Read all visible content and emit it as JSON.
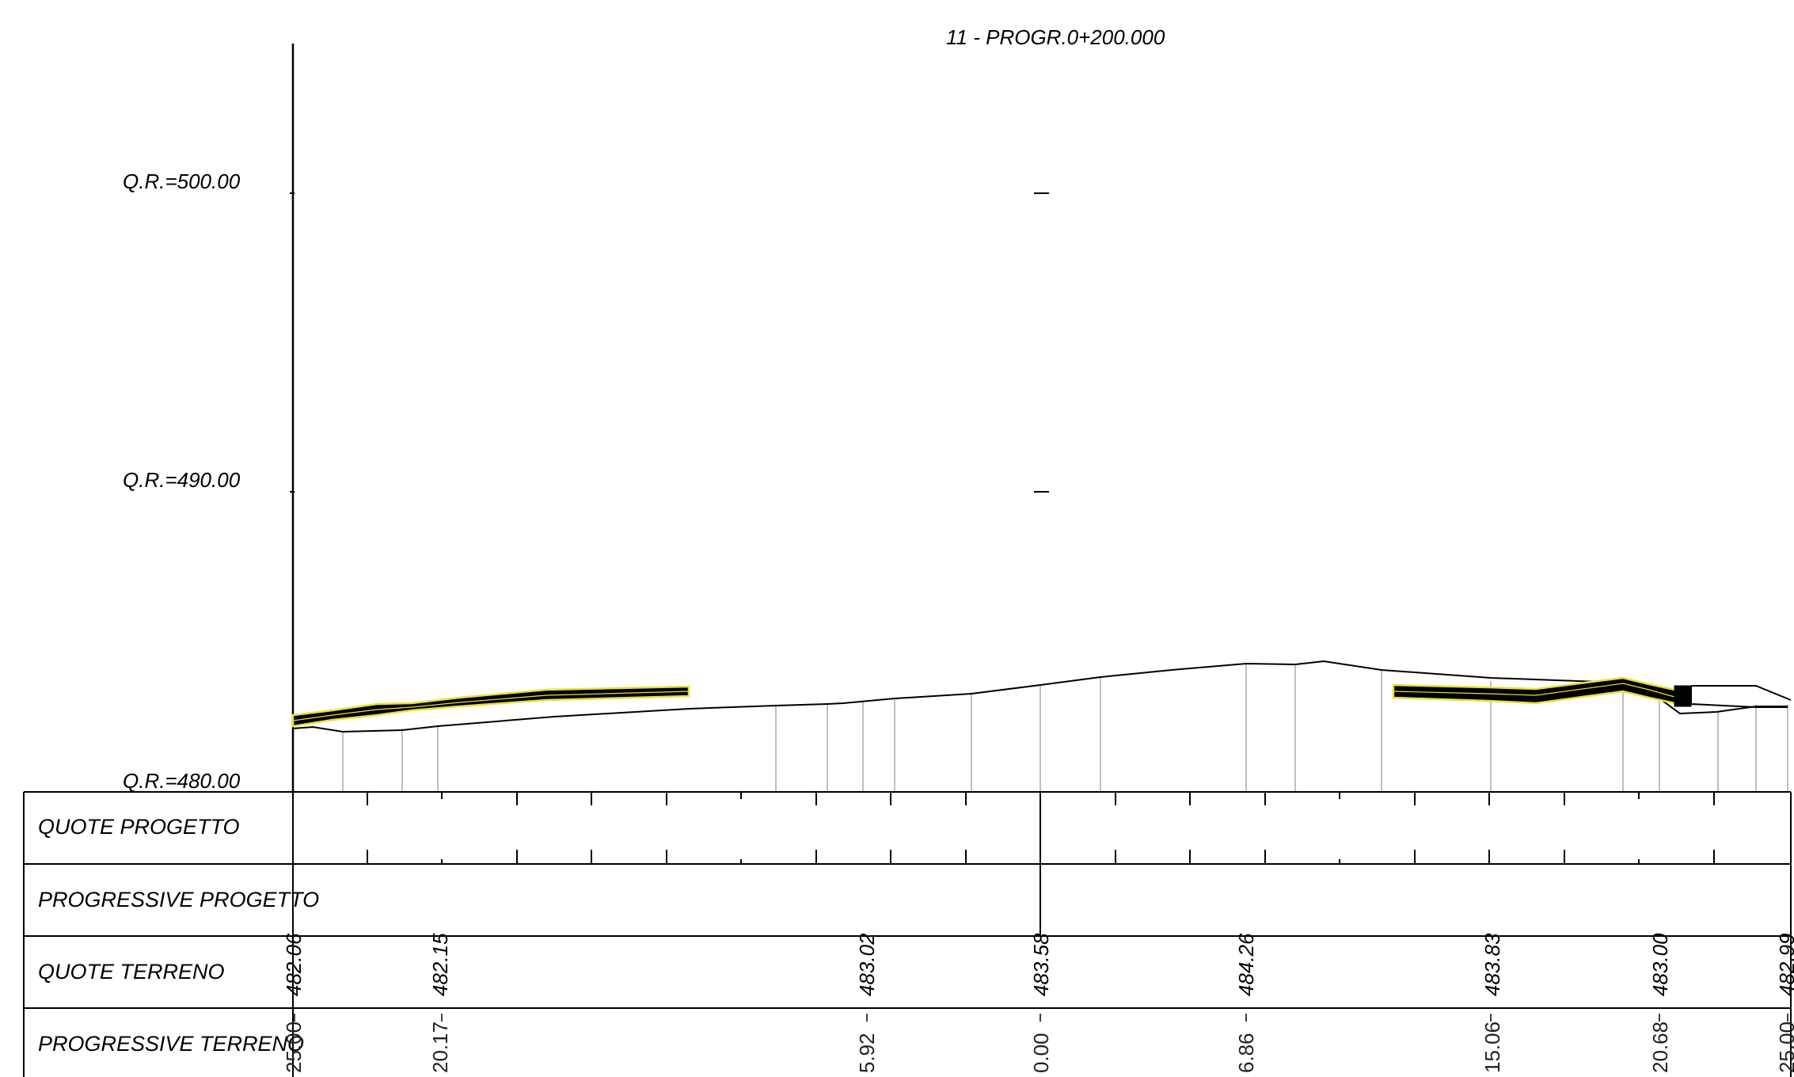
{
  "section_title": "11 - PROGR.0+200.000",
  "reference_levels": [
    {
      "label": "Q.R.=500.00",
      "elevation": 500
    },
    {
      "label": "Q.R.=490.00",
      "elevation": 490
    },
    {
      "label": "Q.R.=480.00",
      "elevation": 480
    }
  ],
  "table_rows": [
    {
      "key": "quote_progetto",
      "label": "QUOTE PROGETTO"
    },
    {
      "key": "progressive_progetto",
      "label": "PROGRESSIVE PROGETTO"
    },
    {
      "key": "quote_terreno",
      "label": "QUOTE TERRENO"
    },
    {
      "key": "progressive_terreno",
      "label": "PROGRESSIVE TERRENO"
    }
  ],
  "terrain_stations": [
    {
      "quota": "482.06",
      "progressiva": "25.00"
    },
    {
      "quota": "482.15",
      "progressiva": "20.17"
    },
    {
      "quota": "483.02",
      "progressiva": "5.92"
    },
    {
      "quota": "483.58",
      "progressiva": "0.00"
    },
    {
      "quota": "484.26",
      "progressiva": "6.86"
    },
    {
      "quota": "483.83",
      "progressiva": "15.06"
    },
    {
      "quota": "483.00",
      "progressiva": "20.68"
    },
    {
      "quota": "482.99",
      "progressiva": "25.00"
    }
  ],
  "colors": {
    "line": "#000000",
    "grid_tick": "#bfbfbf",
    "road_fill": "#000000",
    "road_edge": "#e8e03a"
  }
}
